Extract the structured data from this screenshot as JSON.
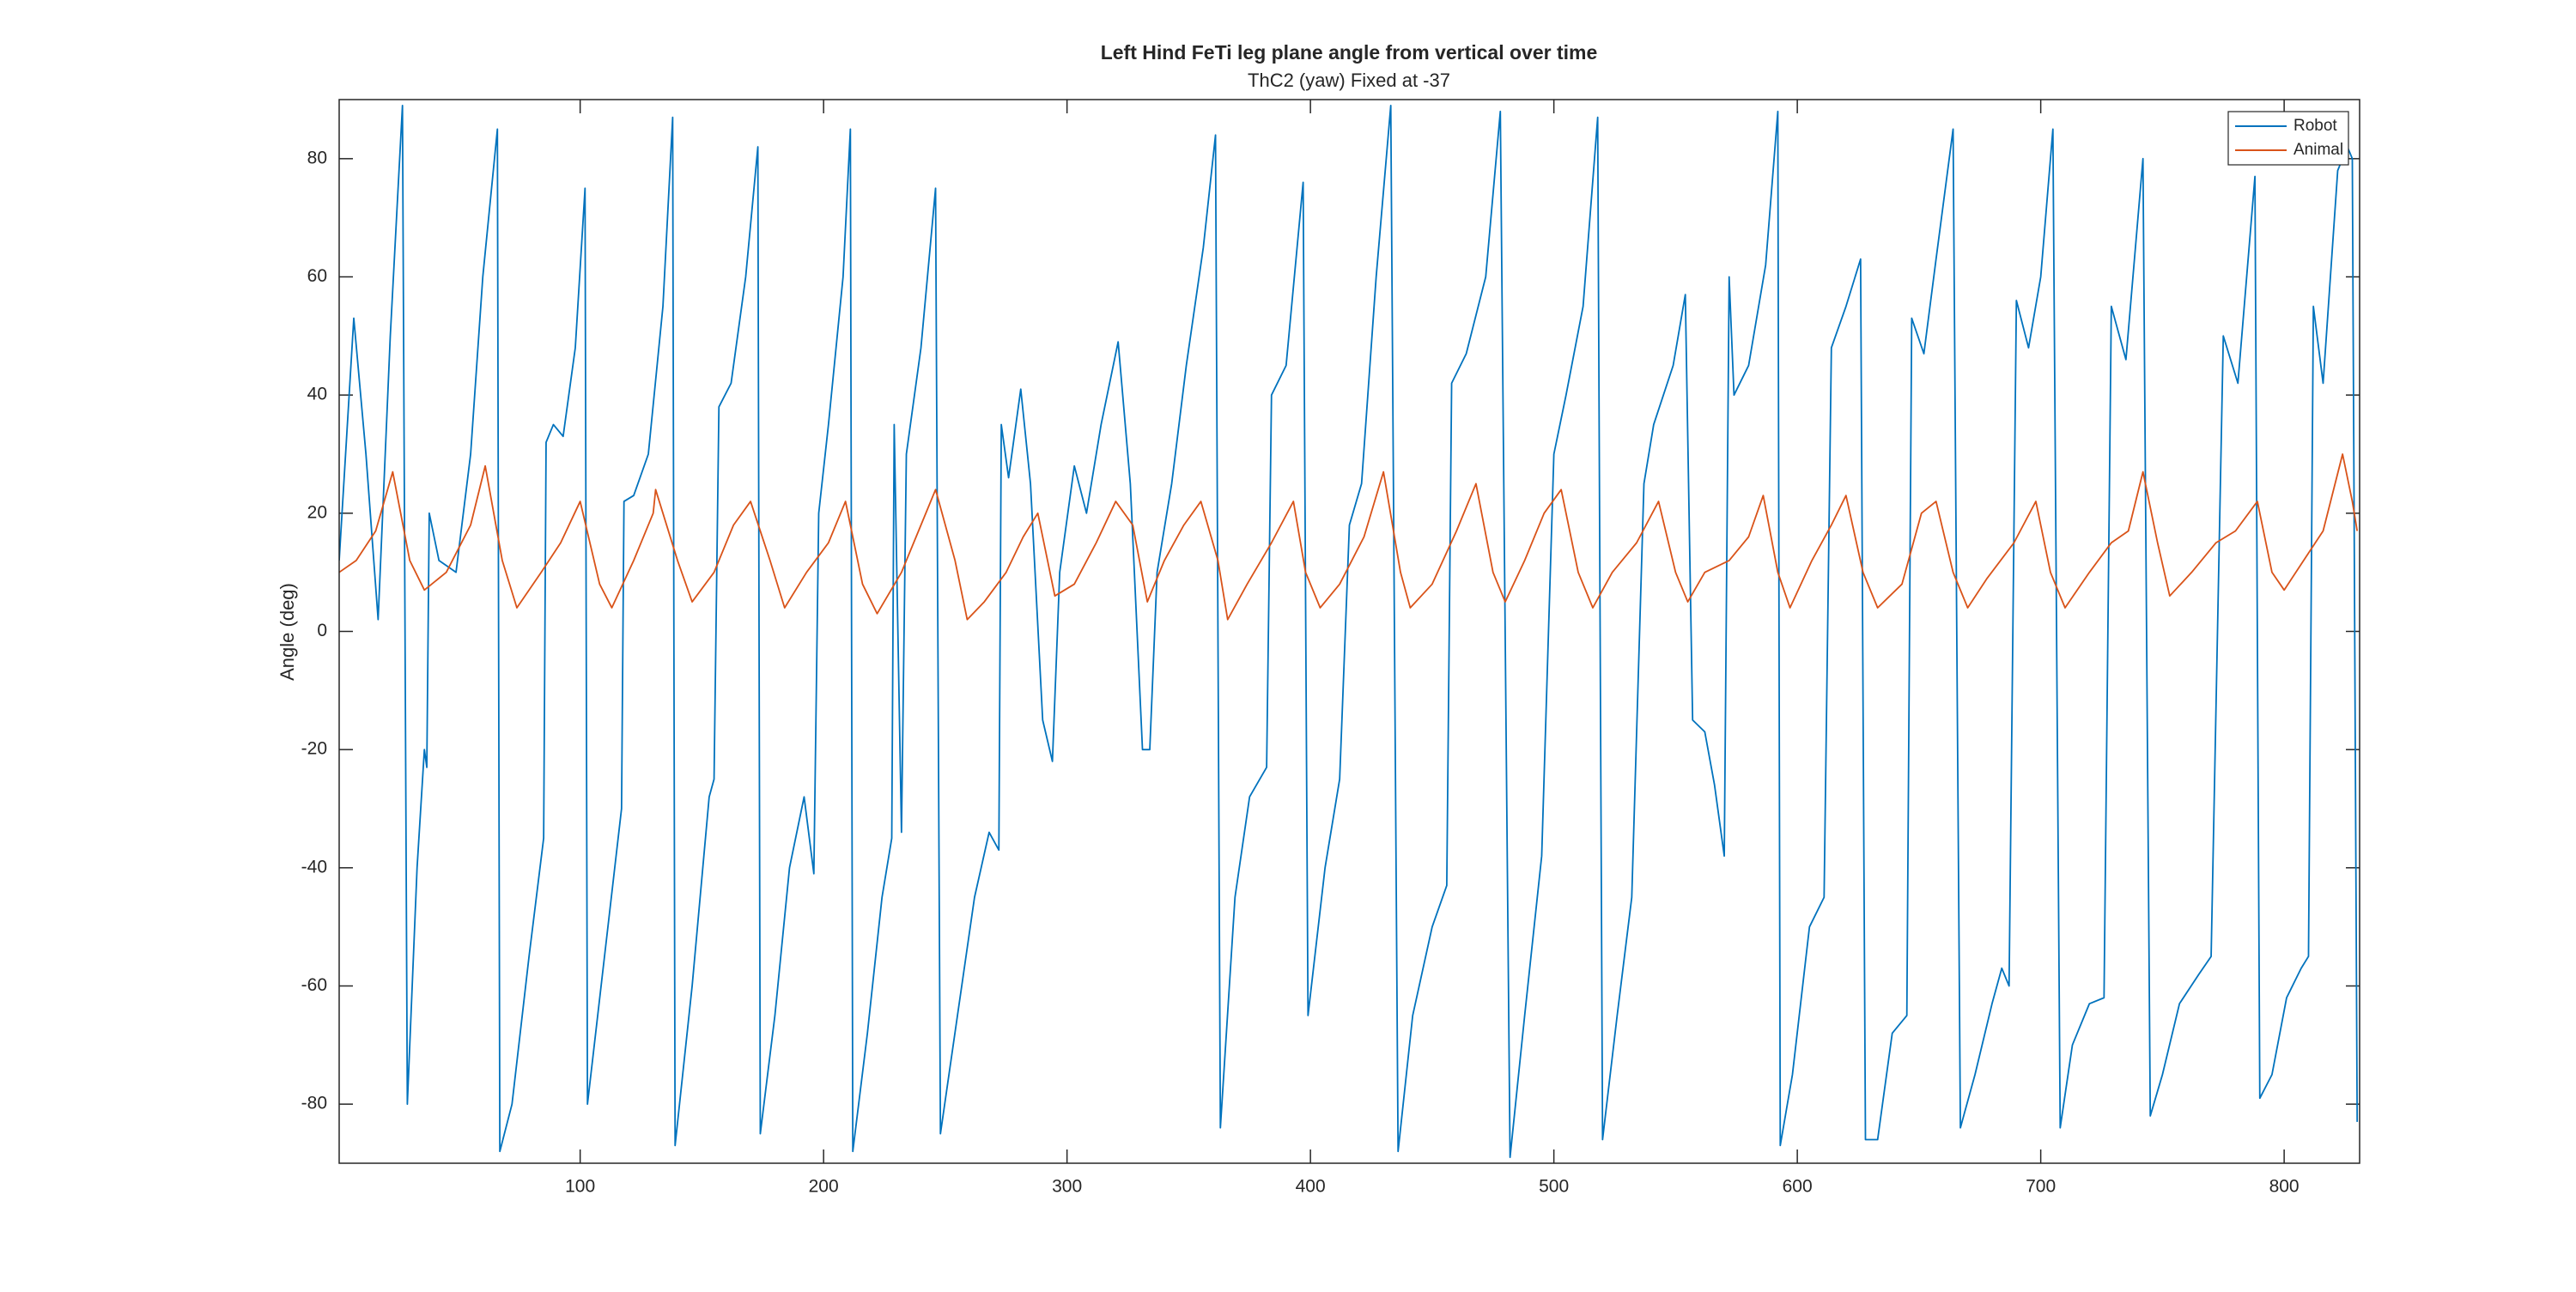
{
  "chart_data": {
    "type": "line",
    "title": "Left Hind FeTi leg plane angle from vertical over time",
    "subtitle": "ThC2 (yaw) Fixed at -37",
    "y_label": "Angle (deg)",
    "xlim": [
      1,
      831
    ],
    "xticks": [
      100,
      200,
      300,
      400,
      500,
      600,
      700,
      800
    ],
    "ylim": [
      -90,
      90
    ],
    "yticks": [
      -80,
      -60,
      -40,
      -20,
      0,
      20,
      40,
      60,
      80
    ],
    "grid": false,
    "legend": "upper right",
    "series": [
      {
        "name": "Robot",
        "color": "#0072BD",
        "x": [
          1,
          7,
          12,
          17,
          22,
          27,
          29,
          33,
          36,
          37,
          38,
          42,
          49,
          55,
          60,
          66,
          67,
          72,
          79,
          85,
          86,
          89,
          93,
          98,
          102,
          103,
          110,
          117,
          118,
          122,
          128,
          134,
          138,
          139,
          146,
          153,
          155,
          157,
          162,
          168,
          173,
          174,
          180,
          186,
          192,
          196,
          198,
          202,
          208,
          211,
          212,
          218,
          224,
          228,
          229,
          232,
          234,
          240,
          246,
          248,
          255,
          262,
          268,
          272,
          273,
          276,
          281,
          285,
          290,
          294,
          297,
          303,
          308,
          314,
          321,
          326,
          331,
          334,
          337,
          343,
          349,
          356,
          361,
          363,
          369,
          375,
          382,
          384,
          390,
          397,
          399,
          406,
          412,
          416,
          421,
          427,
          433,
          436,
          442,
          450,
          456,
          458,
          464,
          472,
          478,
          482,
          488,
          495,
          500,
          505,
          512,
          518,
          520,
          526,
          532,
          537,
          541,
          549,
          554,
          557,
          562,
          566,
          570,
          572,
          574,
          580,
          587,
          592,
          593,
          598,
          605,
          611,
          614,
          620,
          626,
          628,
          633,
          639,
          645,
          647,
          652,
          657,
          664,
          667,
          673,
          680,
          684,
          687,
          690,
          695,
          700,
          705,
          708,
          713,
          720,
          726,
          729,
          735,
          742,
          745,
          750,
          757,
          765,
          770,
          775,
          781,
          788,
          790,
          795,
          801,
          807,
          810,
          812,
          816,
          822,
          826,
          828,
          830
        ],
        "values": [
          12,
          53,
          30,
          2,
          50,
          89,
          -80,
          -40,
          -20,
          -23,
          20,
          12,
          10,
          30,
          60,
          85,
          -88,
          -80,
          -55,
          -35,
          32,
          35,
          33,
          48,
          75,
          -80,
          -55,
          -30,
          22,
          23,
          30,
          55,
          87,
          -87,
          -60,
          -28,
          -25,
          38,
          42,
          60,
          82,
          -85,
          -65,
          -40,
          -28,
          -41,
          20,
          35,
          60,
          85,
          -88,
          -68,
          -45,
          -35,
          35,
          -34,
          30,
          48,
          75,
          -85,
          -65,
          -45,
          -34,
          -37,
          35,
          26,
          41,
          25,
          -15,
          -22,
          10,
          28,
          20,
          35,
          49,
          25,
          -20,
          -20,
          10,
          25,
          45,
          65,
          84,
          -84,
          -45,
          -28,
          -23,
          40,
          45,
          76,
          -65,
          -40,
          -25,
          18,
          25,
          60,
          89,
          -88,
          -65,
          -50,
          -43,
          42,
          47,
          60,
          88,
          -89,
          -65,
          -38,
          30,
          40,
          55,
          87,
          -86,
          -65,
          -45,
          25,
          35,
          45,
          57,
          -15,
          -17,
          -26,
          -38,
          60,
          40,
          45,
          62,
          88,
          -87,
          -75,
          -50,
          -45,
          48,
          55,
          63,
          -86,
          -86,
          -68,
          -65,
          53,
          47,
          63,
          85,
          -84,
          -75,
          -63,
          -57,
          -60,
          56,
          48,
          60,
          85,
          -84,
          -70,
          -63,
          -62,
          55,
          46,
          80,
          -82,
          -75,
          -63,
          -58,
          -55,
          50,
          42,
          77,
          -79,
          -75,
          -62,
          -57,
          -55,
          55,
          42,
          78,
          82,
          80,
          -83
        ]
      },
      {
        "name": "Animal",
        "color": "#D95319",
        "x": [
          1,
          8,
          16,
          23,
          30,
          36,
          45,
          55,
          61,
          68,
          74,
          84,
          92,
          100,
          108,
          113,
          122,
          130,
          131,
          140,
          146,
          155,
          163,
          170,
          178,
          184,
          193,
          202,
          209,
          216,
          222,
          232,
          240,
          246,
          254,
          259,
          266,
          275,
          282,
          288,
          295,
          303,
          312,
          320,
          327,
          333,
          340,
          348,
          355,
          362,
          366,
          374,
          384,
          393,
          398,
          404,
          412,
          422,
          430,
          437,
          441,
          450,
          460,
          468,
          475,
          480,
          488,
          496,
          503,
          510,
          516,
          524,
          534,
          543,
          550,
          555,
          562,
          572,
          580,
          586,
          592,
          597,
          606,
          614,
          620,
          627,
          633,
          643,
          651,
          657,
          664,
          670,
          678,
          689,
          698,
          704,
          710,
          720,
          729,
          736,
          742,
          748,
          753,
          762,
          772,
          780,
          789,
          795,
          800,
          808,
          816,
          824,
          828,
          830
        ],
        "values": [
          10,
          12,
          17,
          27,
          12,
          7,
          10,
          18,
          28,
          12,
          4,
          10,
          15,
          22,
          8,
          4,
          12,
          20,
          24,
          12,
          5,
          10,
          18,
          22,
          12,
          4,
          10,
          15,
          22,
          8,
          3,
          10,
          18,
          24,
          12,
          2,
          5,
          10,
          16,
          20,
          6,
          8,
          15,
          22,
          18,
          5,
          12,
          18,
          22,
          12,
          2,
          8,
          15,
          22,
          10,
          4,
          8,
          16,
          27,
          10,
          4,
          8,
          17,
          25,
          10,
          5,
          12,
          20,
          24,
          10,
          4,
          10,
          15,
          22,
          10,
          5,
          10,
          12,
          16,
          23,
          10,
          4,
          12,
          18,
          23,
          10,
          4,
          8,
          20,
          22,
          10,
          4,
          9,
          15,
          22,
          10,
          4,
          10,
          15,
          17,
          27,
          15,
          6,
          10,
          15,
          17,
          22,
          10,
          7,
          12,
          17,
          30,
          22,
          17
        ]
      }
    ]
  }
}
